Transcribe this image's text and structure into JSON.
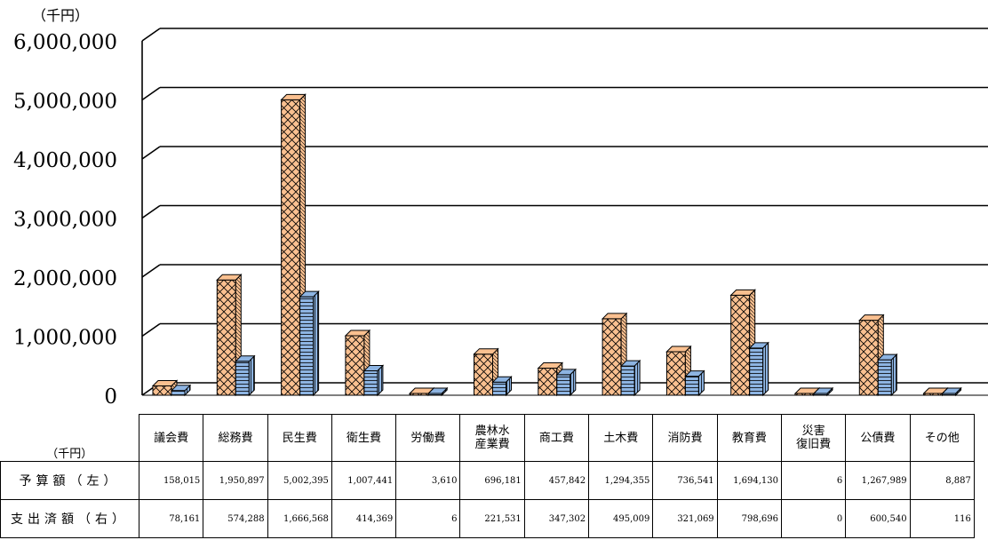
{
  "colors": {
    "budget": "#fac090",
    "spent": "#8db4e2",
    "outline": "#000000"
  },
  "unit_label": "（千円）",
  "table": {
    "unit_label": "（千円）",
    "row_budget_label": "予算額（左）",
    "row_spent_label": "支出済額（右）"
  },
  "chart_data": {
    "type": "bar",
    "title": "",
    "xlabel": "",
    "ylabel": "（千円）",
    "ylim": [
      0,
      6000000
    ],
    "yticks": [
      "0",
      "1,000,000",
      "2,000,000",
      "3,000,000",
      "4,000,000",
      "5,000,000",
      "6,000,000"
    ],
    "grid": true,
    "categories": [
      "議会費",
      "総務費",
      "民生費",
      "衛生費",
      "労働費",
      "農林水\n産業費",
      "商工費",
      "土木費",
      "消防費",
      "教育費",
      "災害\n復旧費",
      "公債費",
      "その他"
    ],
    "series": [
      {
        "name": "予算額（左）",
        "values": [
          158015,
          1950897,
          5002395,
          1007441,
          3610,
          696181,
          457842,
          1294355,
          736541,
          1694130,
          6,
          1267989,
          8887
        ],
        "labels": [
          "158,015",
          "1,950,897",
          "5,002,395",
          "1,007,441",
          "3,610",
          "696,181",
          "457,842",
          "1,294,355",
          "736,541",
          "1,694,130",
          "6",
          "1,267,989",
          "8,887"
        ]
      },
      {
        "name": "支出済額（右）",
        "values": [
          78161,
          574288,
          1666568,
          414369,
          6,
          221531,
          347302,
          495009,
          321069,
          798696,
          0,
          600540,
          116
        ],
        "labels": [
          "78,161",
          "574,288",
          "1,666,568",
          "414,369",
          "6",
          "221,531",
          "347,302",
          "495,009",
          "321,069",
          "798,696",
          "0",
          "600,540",
          "116"
        ]
      }
    ]
  }
}
